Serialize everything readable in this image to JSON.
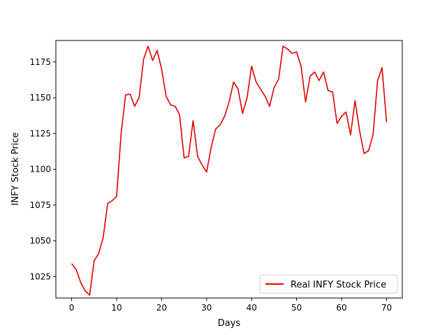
{
  "chart_data": {
    "type": "line",
    "title": "",
    "xlabel": "Days",
    "ylabel": "INFY Stock Price",
    "xlim": [
      -3.5,
      73.5
    ],
    "ylim": [
      1010,
      1190
    ],
    "xticks": [
      0,
      10,
      20,
      30,
      40,
      50,
      60,
      70
    ],
    "yticks": [
      1025,
      1050,
      1075,
      1100,
      1125,
      1150,
      1175
    ],
    "grid": false,
    "legend_position": "lower-right",
    "series": [
      {
        "name": "Real INFY Stock Price",
        "color": "#e00000",
        "x": [
          0,
          1,
          2,
          3,
          4,
          5,
          6,
          7,
          8,
          9,
          10,
          11,
          12,
          13,
          14,
          15,
          16,
          17,
          18,
          19,
          20,
          21,
          22,
          23,
          24,
          25,
          26,
          27,
          28,
          29,
          30,
          31,
          32,
          33,
          34,
          35,
          36,
          37,
          38,
          39,
          40,
          41,
          42,
          43,
          44,
          45,
          46,
          47,
          48,
          49,
          50,
          51,
          52,
          53,
          54,
          55,
          56,
          57,
          58,
          59,
          60,
          61,
          62,
          63,
          64,
          65,
          66,
          67,
          68,
          69,
          70
        ],
        "values": [
          1034,
          1030,
          1021,
          1015,
          1012,
          1036,
          1041,
          1052,
          1076,
          1078,
          1081,
          1125,
          1152,
          1152.5,
          1144,
          1150,
          1177,
          1186,
          1176,
          1183,
          1170,
          1151,
          1145,
          1144,
          1138,
          1108,
          1109,
          1134,
          1109,
          1103,
          1098,
          1115,
          1128,
          1131,
          1137,
          1147,
          1161,
          1156,
          1139,
          1150,
          1172,
          1161,
          1156,
          1151,
          1144,
          1157,
          1163,
          1186,
          1184,
          1181,
          1182,
          1172,
          1147,
          1165,
          1168,
          1162,
          1168,
          1155,
          1154,
          1132,
          1137,
          1140,
          1124,
          1148,
          1127,
          1111,
          1113,
          1124,
          1162,
          1171,
          1133
        ]
      }
    ]
  }
}
